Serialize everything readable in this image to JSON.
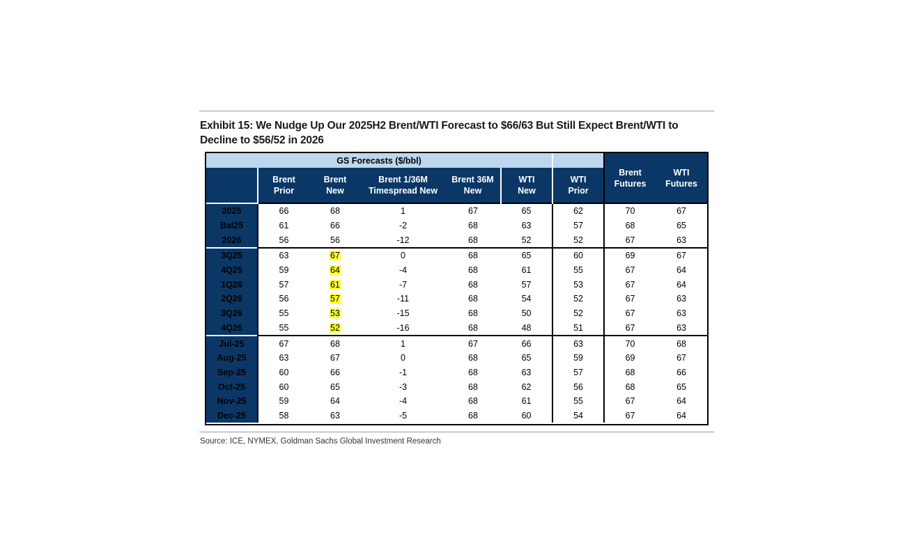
{
  "title": "Exhibit 15: We Nudge Up Our 2025H2 Brent/WTI Forecast to $66/63 But Still Expect Brent/WTI to Decline to $56/52 in 2026",
  "source": "Source: ICE, NYMEX, Goldman Sachs Global Investment Research",
  "chart_data": {
    "type": "table",
    "group_header": "GS Forecasts ($/bbl)",
    "columns": [
      "Brent Prior",
      "Brent New",
      "Brent 1/36M Timespread New",
      "Brent 36M New",
      "WTI New",
      "WTI Prior",
      "Brent Futures",
      "WTI Futures"
    ],
    "column_lines": [
      [
        "Brent",
        "Prior"
      ],
      [
        "Brent",
        "New"
      ],
      [
        "Brent 1/36M",
        "Timespread New"
      ],
      [
        "Brent 36M",
        "New"
      ],
      [
        "WTI",
        "New"
      ],
      [
        "WTI",
        "Prior"
      ],
      [
        "Brent",
        "Futures"
      ],
      [
        "WTI",
        "Futures"
      ]
    ],
    "highlight_color": "#ffff33",
    "groups": [
      {
        "rows": [
          {
            "label": "2025",
            "values": [
              "66",
              "68",
              "1",
              "67",
              "65",
              "62",
              "70",
              "67"
            ]
          },
          {
            "label": "Bal25",
            "values": [
              "61",
              "66",
              "-2",
              "68",
              "63",
              "57",
              "68",
              "65"
            ]
          },
          {
            "label": "2026",
            "values": [
              "56",
              "56",
              "-12",
              "68",
              "52",
              "52",
              "67",
              "63"
            ]
          }
        ]
      },
      {
        "rows": [
          {
            "label": "3Q25",
            "values": [
              "63",
              "67",
              "0",
              "68",
              "65",
              "60",
              "69",
              "67"
            ],
            "highlight": [
              1
            ]
          },
          {
            "label": "4Q25",
            "values": [
              "59",
              "64",
              "-4",
              "68",
              "61",
              "55",
              "67",
              "64"
            ],
            "highlight": [
              1
            ]
          },
          {
            "label": "1Q26",
            "values": [
              "57",
              "61",
              "-7",
              "68",
              "57",
              "53",
              "67",
              "64"
            ],
            "highlight": [
              1
            ]
          },
          {
            "label": "2Q26",
            "values": [
              "56",
              "57",
              "-11",
              "68",
              "54",
              "52",
              "67",
              "63"
            ],
            "highlight": [
              1
            ]
          },
          {
            "label": "3Q26",
            "values": [
              "55",
              "53",
              "-15",
              "68",
              "50",
              "52",
              "67",
              "63"
            ],
            "highlight": [
              1
            ]
          },
          {
            "label": "4Q26",
            "values": [
              "55",
              "52",
              "-16",
              "68",
              "48",
              "51",
              "67",
              "63"
            ],
            "highlight": [
              1
            ]
          }
        ]
      },
      {
        "rows": [
          {
            "label": "Jul-25",
            "values": [
              "67",
              "68",
              "1",
              "67",
              "66",
              "63",
              "70",
              "68"
            ]
          },
          {
            "label": "Aug-25",
            "values": [
              "63",
              "67",
              "0",
              "68",
              "65",
              "59",
              "69",
              "67"
            ]
          },
          {
            "label": "Sep-25",
            "values": [
              "60",
              "66",
              "-1",
              "68",
              "63",
              "57",
              "68",
              "66"
            ]
          },
          {
            "label": "Oct-25",
            "values": [
              "60",
              "65",
              "-3",
              "68",
              "62",
              "56",
              "68",
              "65"
            ]
          },
          {
            "label": "Nov-25",
            "values": [
              "59",
              "64",
              "-4",
              "68",
              "61",
              "55",
              "67",
              "64"
            ]
          },
          {
            "label": "Dec-25",
            "values": [
              "58",
              "63",
              "-5",
              "68",
              "60",
              "54",
              "67",
              "64"
            ]
          }
        ]
      }
    ]
  }
}
